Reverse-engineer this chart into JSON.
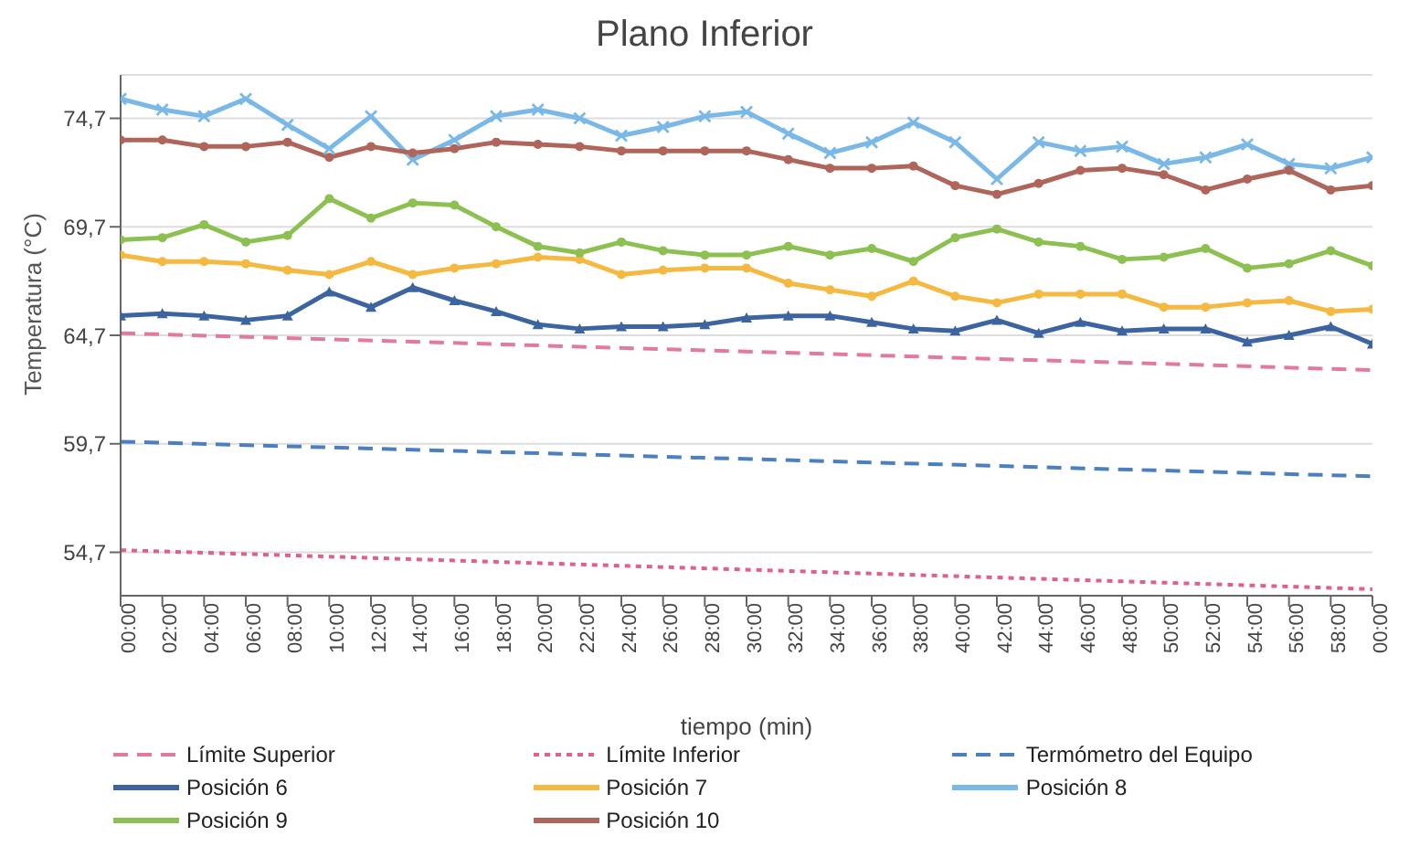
{
  "chart_data": {
    "type": "line",
    "title": "Plano Inferior",
    "xlabel": "tiempo (min)",
    "ylabel": "Temperatura (°C)",
    "categories": [
      "00:00",
      "02:00",
      "04:00",
      "06:00",
      "08:00",
      "10:00",
      "12:00",
      "14:00",
      "16:00",
      "18:00",
      "20:00",
      "22:00",
      "24:00",
      "26:00",
      "28:00",
      "30:00",
      "32:00",
      "34:00",
      "36:00",
      "38:00",
      "40:00",
      "42:00",
      "44:00",
      "46:00",
      "48:00",
      "50:00",
      "52:00",
      "54:00",
      "56:00",
      "58:00",
      "00:00"
    ],
    "ylim": [
      52.7,
      76.7
    ],
    "yticks": [
      {
        "value": 54.7,
        "label": "54,7"
      },
      {
        "value": 59.7,
        "label": "59,7"
      },
      {
        "value": 64.7,
        "label": "64,7"
      },
      {
        "value": 69.7,
        "label": "69,7"
      },
      {
        "value": 74.7,
        "label": "74,7"
      }
    ],
    "grid": "y",
    "legend": "bottom",
    "series": [
      {
        "name": "Límite Superior",
        "color": "#e27a9a",
        "line_style": "dashed",
        "marker": "none",
        "values": [
          64.8,
          null,
          null,
          null,
          null,
          null,
          null,
          null,
          null,
          null,
          null,
          null,
          null,
          null,
          null,
          null,
          null,
          null,
          null,
          null,
          null,
          null,
          null,
          null,
          null,
          null,
          null,
          null,
          null,
          null,
          63.1
        ]
      },
      {
        "name": "Límite Inferior",
        "color": "#e0608a",
        "line_style": "dotted",
        "marker": "none",
        "values": [
          54.8,
          null,
          null,
          null,
          null,
          null,
          null,
          null,
          null,
          null,
          null,
          null,
          null,
          null,
          null,
          null,
          null,
          null,
          null,
          null,
          null,
          null,
          null,
          null,
          null,
          null,
          null,
          null,
          null,
          null,
          53.0
        ]
      },
      {
        "name": "Termómetro del Equipo",
        "color": "#4a7fc0",
        "line_style": "dashed",
        "marker": "none",
        "values": [
          59.8,
          null,
          null,
          null,
          null,
          null,
          null,
          null,
          null,
          null,
          null,
          null,
          null,
          null,
          null,
          null,
          null,
          null,
          null,
          null,
          null,
          null,
          null,
          null,
          null,
          null,
          null,
          null,
          null,
          null,
          58.2
        ]
      },
      {
        "name": "Posición 6",
        "color": "#3b64a0",
        "marker": "triangle",
        "values": [
          65.6,
          65.7,
          65.6,
          65.4,
          65.6,
          66.7,
          66.0,
          66.9,
          66.3,
          65.8,
          65.2,
          65.0,
          65.1,
          65.1,
          65.2,
          65.5,
          65.6,
          65.6,
          65.3,
          65.0,
          64.9,
          65.4,
          64.8,
          65.3,
          64.9,
          65.0,
          65.0,
          64.4,
          64.7,
          65.1,
          64.3
        ]
      },
      {
        "name": "Posición 7",
        "color": "#f5b840",
        "marker": "circle",
        "values": [
          68.4,
          68.1,
          68.1,
          68.0,
          67.7,
          67.5,
          68.1,
          67.5,
          67.8,
          68.0,
          68.3,
          68.2,
          67.5,
          67.7,
          67.8,
          67.8,
          67.1,
          66.8,
          66.5,
          67.2,
          66.5,
          66.2,
          66.6,
          66.6,
          66.6,
          66.0,
          66.0,
          66.2,
          66.3,
          65.8,
          65.9
        ]
      },
      {
        "name": "Posición 8",
        "color": "#7ab8e8",
        "marker": "cross",
        "values": [
          75.6,
          75.1,
          74.8,
          75.6,
          74.4,
          73.3,
          74.8,
          72.8,
          73.7,
          74.8,
          75.1,
          74.7,
          73.9,
          74.3,
          74.8,
          75.0,
          74.0,
          73.1,
          73.6,
          74.5,
          73.6,
          71.9,
          73.6,
          73.2,
          73.4,
          72.6,
          72.9,
          73.5,
          72.6,
          72.4,
          72.9
        ]
      },
      {
        "name": "Posición 9",
        "color": "#8cc152",
        "marker": "circle",
        "values": [
          69.1,
          69.2,
          69.8,
          69.0,
          69.3,
          71.0,
          70.1,
          70.8,
          70.7,
          69.7,
          68.8,
          68.5,
          69.0,
          68.6,
          68.4,
          68.4,
          68.8,
          68.4,
          68.7,
          68.1,
          69.2,
          69.6,
          69.0,
          68.8,
          68.2,
          68.3,
          68.7,
          67.8,
          68.0,
          68.6,
          67.9
        ]
      },
      {
        "name": "Posición 10",
        "color": "#b0655a",
        "marker": "circle",
        "values": [
          73.7,
          73.7,
          73.4,
          73.4,
          73.6,
          72.9,
          73.4,
          73.1,
          73.3,
          73.6,
          73.5,
          73.4,
          73.2,
          73.2,
          73.2,
          73.2,
          72.8,
          72.4,
          72.4,
          72.5,
          71.6,
          71.2,
          71.7,
          72.3,
          72.4,
          72.1,
          71.4,
          71.9,
          72.3,
          71.4,
          71.6
        ]
      }
    ]
  }
}
